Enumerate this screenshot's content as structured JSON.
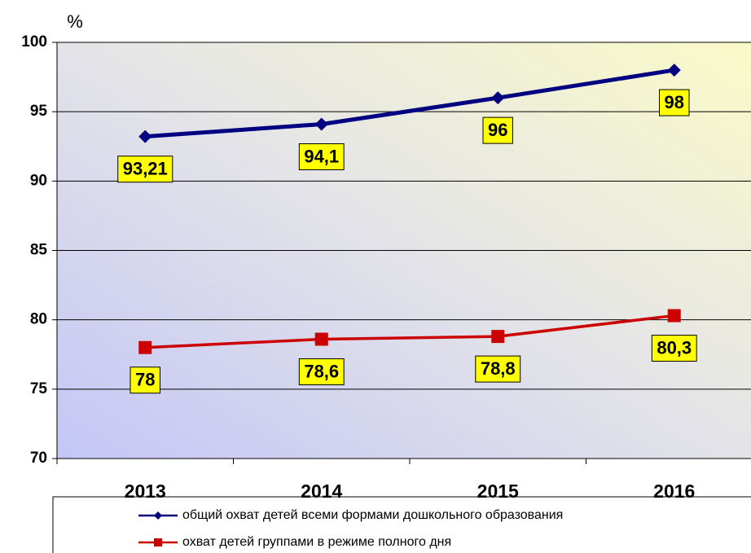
{
  "chart_data": {
    "type": "line",
    "y_label": "%",
    "categories": [
      "2013",
      "2014",
      "2015",
      "2016"
    ],
    "series": [
      {
        "name": "общий охват детей всеми формами дошкольного образования",
        "color": "#000080",
        "values": [
          93.21,
          94.1,
          96,
          98
        ],
        "value_labels": [
          "93,21",
          "94,1",
          "96",
          "98"
        ]
      },
      {
        "name": "охват детей группами в режиме полного дня",
        "color": "#cc0000",
        "values": [
          78,
          78.6,
          78.8,
          80.3
        ],
        "value_labels": [
          "78",
          "78,6",
          "78,8",
          "80,3"
        ]
      }
    ],
    "ylim": [
      70,
      100
    ],
    "yticks": [
      70,
      75,
      80,
      85,
      90,
      95,
      100
    ],
    "grid": true,
    "legend": "bottom"
  }
}
